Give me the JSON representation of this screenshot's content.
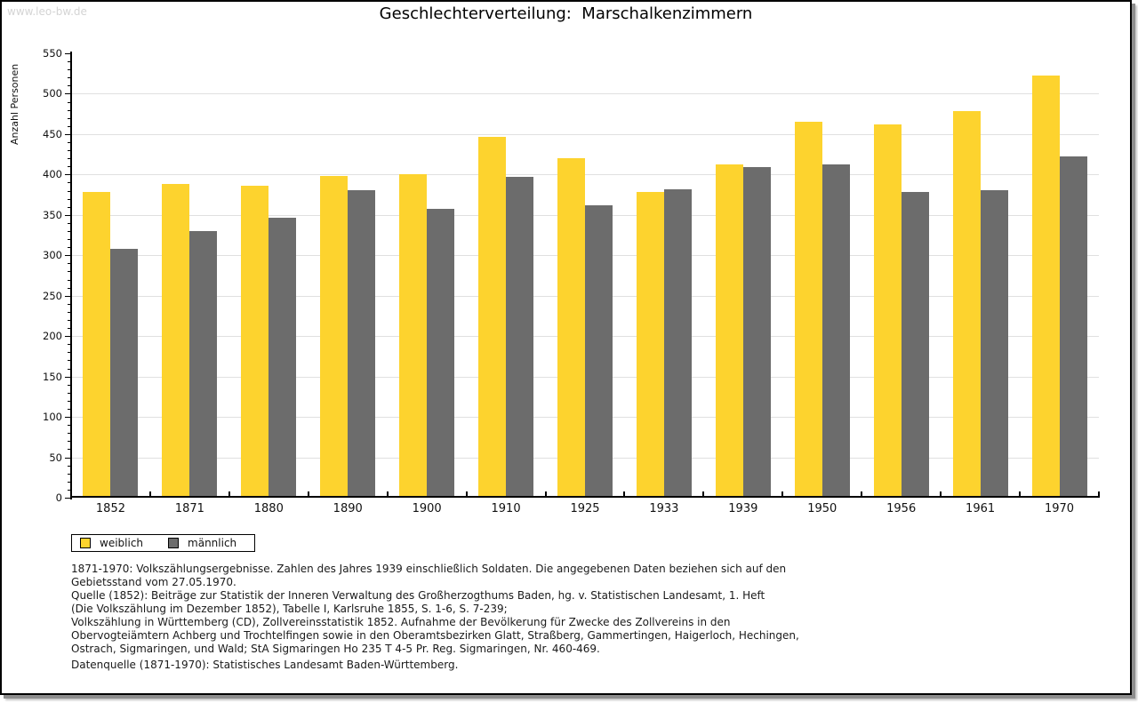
{
  "page": {
    "watermark": "www.leo-bw.de",
    "watermark_color": "#d4d4d4"
  },
  "chart_data": {
    "type": "bar",
    "title": "Geschlechterverteilung:  Marschalkenzimmern",
    "xlabel": "",
    "ylabel": "Anzahl Personen",
    "ylim": [
      0,
      550
    ],
    "ytick_step": 50,
    "yminor_step": 10,
    "grid": true,
    "grid_color": "#e0e0e0",
    "legend_position": "bottom-left",
    "categories": [
      "1852",
      "1871",
      "1880",
      "1890",
      "1900",
      "1910",
      "1925",
      "1933",
      "1939",
      "1950",
      "1956",
      "1961",
      "1970"
    ],
    "series": [
      {
        "name": "weiblich",
        "color": "#fdd32e",
        "values": [
          378,
          388,
          386,
          398,
          400,
          447,
          420,
          378,
          413,
          465,
          462,
          479,
          522
        ]
      },
      {
        "name": "männlich",
        "color": "#6c6c6c",
        "values": [
          308,
          330,
          346,
          381,
          358,
          397,
          362,
          382,
          409,
          413,
          378,
          381,
          422
        ]
      }
    ]
  },
  "footer": {
    "lines": [
      "1871-1970: Volkszählungsergebnisse. Zahlen des Jahres 1939 einschließlich Soldaten. Die angegebenen Daten beziehen sich auf den",
      "Gebietsstand vom 27.05.1970.",
      "Quelle (1852): Beiträge zur Statistik der Inneren Verwaltung des Großherzogthums Baden, hg. v. Statistischen Landesamt, 1. Heft",
      "(Die Volkszählung im Dezember 1852), Tabelle I, Karlsruhe 1855, S. 1-6, S. 7-239;",
      "Volkszählung in Württemberg (CD), Zollvereinsstatistik 1852. Aufnahme der Bevölkerung für Zwecke des Zollvereins in den",
      "Obervogteiämtern Achberg und Trochtelfingen sowie in den Oberamtsbezirken Glatt, Straßberg, Gammertingen, Haigerloch, Hechingen,",
      "Ostrach, Sigmaringen, und Wald; StA Sigmaringen Ho 235 T 4-5 Pr. Reg. Sigmaringen, Nr. 460-469."
    ],
    "datasource": "Datenquelle (1871-1970): Statistisches Landesamt Baden-Württemberg."
  }
}
